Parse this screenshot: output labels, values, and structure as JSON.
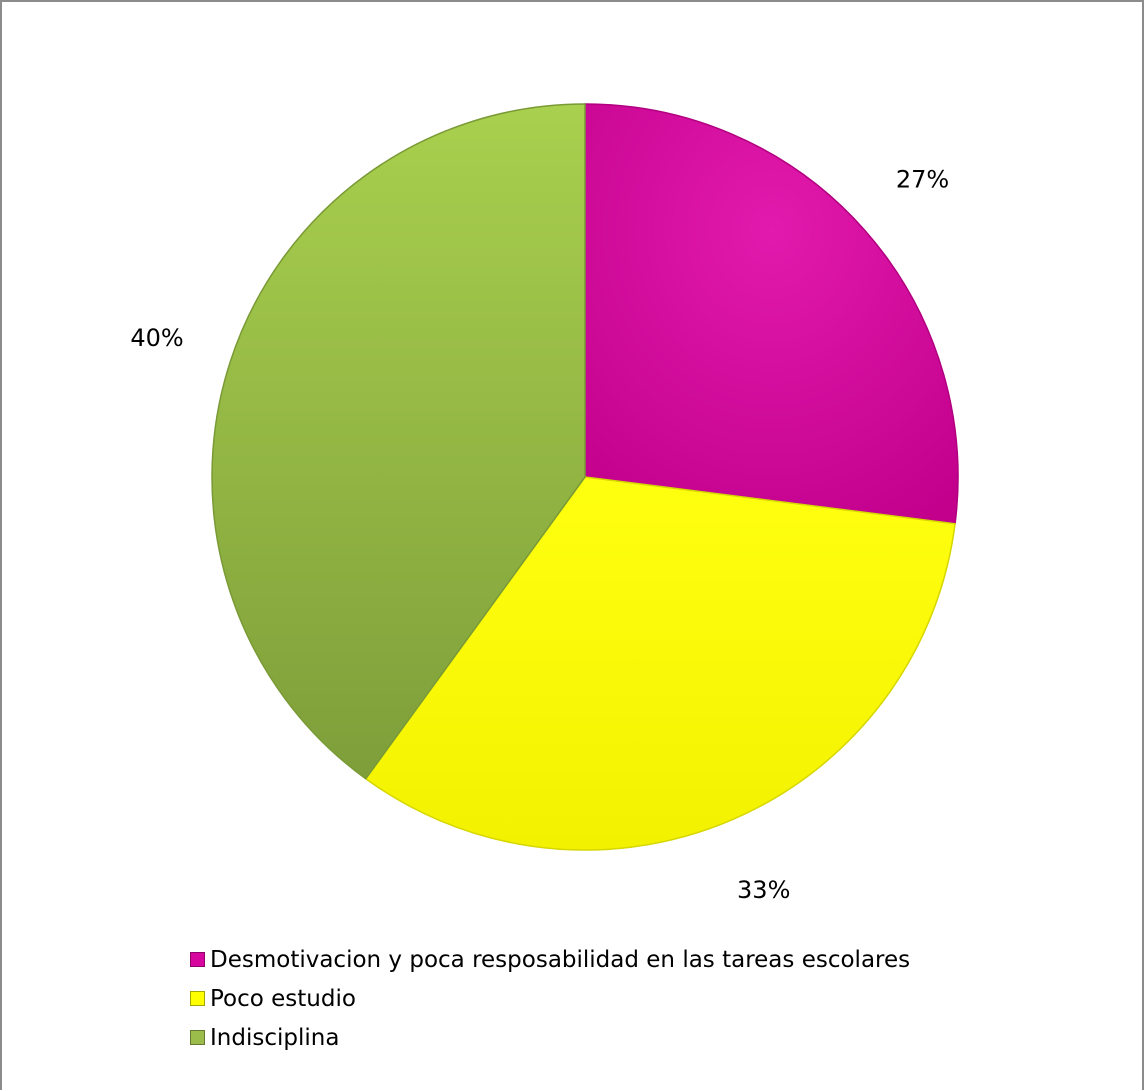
{
  "chart_data": {
    "type": "pie",
    "title": "",
    "categories": [
      "Desmotivacion y poca resposabilidad en las tareas escolares",
      "Poco estudio",
      "Indisciplina"
    ],
    "values": [
      27,
      33,
      40
    ],
    "labels": [
      "27%",
      "33%",
      "40%"
    ],
    "colors": [
      "#d6069e",
      "#ffff00",
      "#9bbb4a"
    ],
    "legend_position": "bottom-left"
  }
}
